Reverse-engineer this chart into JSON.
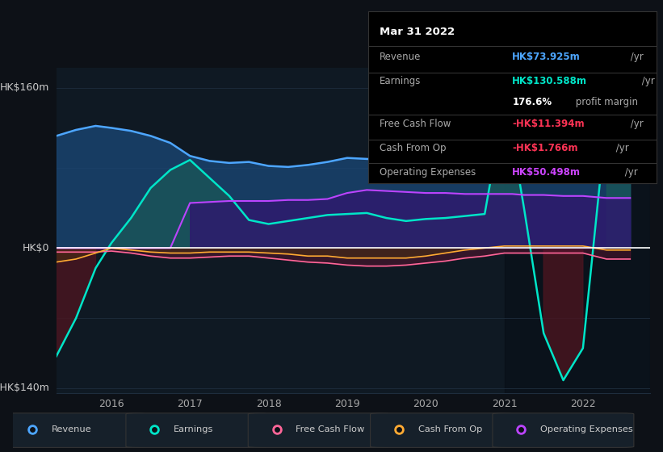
{
  "background_color": "#0d1117",
  "plot_bg_color": "#0f1923",
  "ylabel_top": "HK$160m",
  "ylabel_bottom": "-HK$140m",
  "ylabel_zero": "HK$0",
  "ylim": [
    -145,
    180
  ],
  "xlim": [
    2015.3,
    2022.85
  ],
  "zero_line_color": "#ffffff",
  "grid_color": "#1e2d3d",
  "x_ticks": [
    2016,
    2017,
    2018,
    2019,
    2020,
    2021,
    2022
  ],
  "infobox": {
    "date": "Mar 31 2022",
    "revenue_label": "Revenue",
    "revenue_value": "HK$73.925m",
    "revenue_color": "#4da6ff",
    "earnings_label": "Earnings",
    "earnings_value": "HK$130.588m",
    "earnings_color": "#00e5c8",
    "profit_pct": "176.6%",
    "profit_label": " profit margin",
    "fcf_label": "Free Cash Flow",
    "fcf_value": "-HK$11.394m",
    "fcf_color": "#ff3355",
    "cashop_label": "Cash From Op",
    "cashop_value": "-HK$1.766m",
    "cashop_color": "#ff3355",
    "opex_label": "Operating Expenses",
    "opex_value": "HK$50.498m",
    "opex_color": "#cc44ff"
  },
  "legend": [
    {
      "label": "Revenue",
      "color": "#4da6ff"
    },
    {
      "label": "Earnings",
      "color": "#00e5c8"
    },
    {
      "label": "Free Cash Flow",
      "color": "#ff6699"
    },
    {
      "label": "Cash From Op",
      "color": "#ffaa33"
    },
    {
      "label": "Operating Expenses",
      "color": "#bb44ff"
    }
  ],
  "series": {
    "years": [
      2015.3,
      2015.55,
      2015.8,
      2016.0,
      2016.25,
      2016.5,
      2016.75,
      2017.0,
      2017.25,
      2017.5,
      2017.75,
      2018.0,
      2018.25,
      2018.5,
      2018.75,
      2019.0,
      2019.25,
      2019.5,
      2019.75,
      2020.0,
      2020.25,
      2020.5,
      2020.75,
      2021.0,
      2021.1,
      2021.25,
      2021.5,
      2021.75,
      2022.0,
      2022.3,
      2022.6
    ],
    "revenue": [
      112,
      118,
      122,
      120,
      117,
      112,
      105,
      92,
      87,
      85,
      86,
      82,
      81,
      83,
      86,
      90,
      89,
      88,
      86,
      88,
      91,
      94,
      92,
      98,
      96,
      88,
      92,
      96,
      98,
      74,
      74
    ],
    "earnings": [
      -108,
      -70,
      -20,
      5,
      30,
      60,
      78,
      88,
      70,
      52,
      28,
      24,
      27,
      30,
      33,
      34,
      35,
      30,
      27,
      29,
      30,
      32,
      34,
      145,
      110,
      40,
      -85,
      -132,
      -100,
      130,
      130
    ],
    "free_cash_flow": [
      -4,
      -4,
      -4,
      -3,
      -5,
      -8,
      -10,
      -10,
      -9,
      -8,
      -8,
      -10,
      -12,
      -14,
      -15,
      -17,
      -18,
      -18,
      -17,
      -15,
      -13,
      -10,
      -8,
      -5,
      -5,
      -5,
      -5,
      -5,
      -5,
      -11,
      -11
    ],
    "cash_from_op": [
      -14,
      -11,
      -5,
      0,
      -2,
      -4,
      -5,
      -5,
      -4,
      -4,
      -4,
      -5,
      -6,
      -8,
      -8,
      -10,
      -10,
      -10,
      -10,
      -8,
      -5,
      -2,
      0,
      2,
      2,
      2,
      2,
      2,
      2,
      -2,
      -2
    ],
    "operating_expenses": [
      0,
      0,
      0,
      0,
      0,
      0,
      0,
      45,
      46,
      47,
      47,
      47,
      48,
      48,
      49,
      55,
      58,
      57,
      56,
      55,
      55,
      54,
      54,
      54,
      54,
      53,
      53,
      52,
      52,
      50,
      50
    ]
  }
}
